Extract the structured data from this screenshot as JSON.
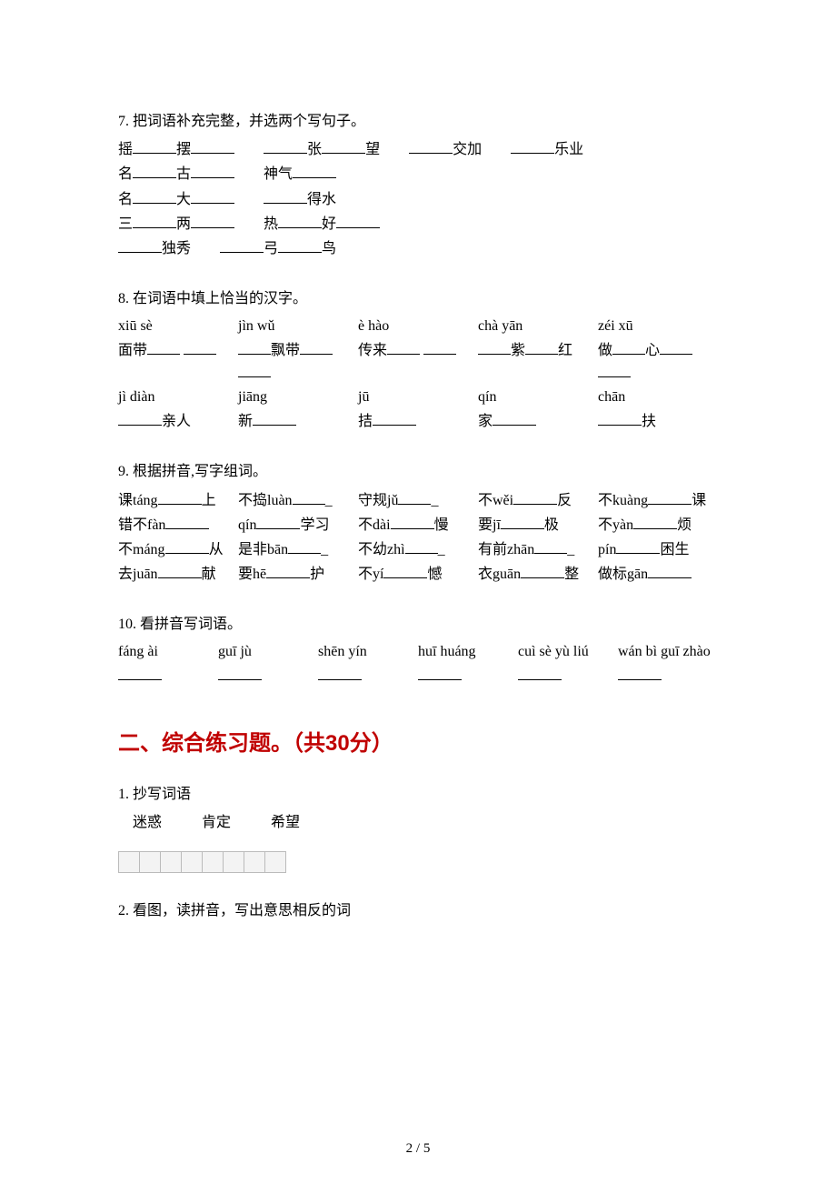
{
  "q7": {
    "title": "7. 把词语补充完整，并选两个写句子。",
    "rows": [
      [
        [
          "摇",
          "",
          "摆",
          ""
        ],
        [
          "",
          "张",
          "",
          "望"
        ],
        [
          "",
          "交加"
        ],
        [
          "",
          "乐业"
        ]
      ],
      [
        [
          "名",
          "",
          "古",
          ""
        ],
        [
          "神气",
          ""
        ]
      ],
      [
        [
          "名",
          "",
          "大",
          ""
        ],
        [
          "",
          "得水"
        ]
      ],
      [
        [
          "三",
          "",
          "两",
          ""
        ],
        [
          "热",
          "",
          "好",
          ""
        ]
      ],
      [
        [
          "",
          "独秀"
        ],
        [
          "",
          "弓",
          "",
          "鸟"
        ]
      ]
    ]
  },
  "q8": {
    "title": "8. 在词语中填上恰当的汉字。",
    "pinyin": [
      "xiū sè",
      "jìn wǔ",
      "è hào",
      "chà yān",
      "zéi xū"
    ],
    "row1_parts": [
      [
        "面带",
        "",
        ""
      ],
      [
        "",
        "飘带",
        "",
        ""
      ],
      [
        "传来",
        "",
        ""
      ],
      [
        "",
        "紫",
        "红"
      ],
      [
        "做",
        "",
        "心",
        "",
        ""
      ]
    ],
    "pinyin2": [
      "jì diàn",
      "jiāng",
      "jū",
      "qín",
      "chān"
    ],
    "row2_parts": [
      [
        "",
        "亲人"
      ],
      [
        "新",
        ""
      ],
      [
        "拮",
        ""
      ],
      [
        "家",
        ""
      ],
      [
        "",
        "扶"
      ]
    ]
  },
  "q9": {
    "title": "9. 根据拼音,写字组词。",
    "rows": [
      [
        "课táng______上",
        "不捣luàn______",
        "守规jǔ______",
        "不wěi______反",
        "不kuàng______课"
      ],
      [
        "错不fàn______",
        "qín______学习",
        "不dài______慢",
        "要jī______极",
        "不yàn______烦"
      ],
      [
        "不máng______从",
        "是非bān______",
        "不幼zhì______",
        "有前zhān______",
        "pín______困生"
      ],
      [
        "去juān______献",
        "要hē______护",
        "不yí______憾",
        "衣guān______整",
        "做标gān______"
      ]
    ]
  },
  "q10": {
    "title": "10. 看拼音写词语。",
    "items": [
      "fáng ài",
      "guī jù",
      "shēn yín",
      "huī huáng",
      "cuì sè yù liú",
      "wán bì guī zhào"
    ]
  },
  "section2": {
    "heading": "二、综合练习题。（共30分）",
    "q1": {
      "title": "1. 抄写词语",
      "words": [
        "迷惑",
        "肯定",
        "希望"
      ],
      "box_count": 8
    },
    "q2": {
      "title": "2. 看图，读拼音，写出意思相反的词"
    }
  },
  "pageNumber": "2 / 5"
}
